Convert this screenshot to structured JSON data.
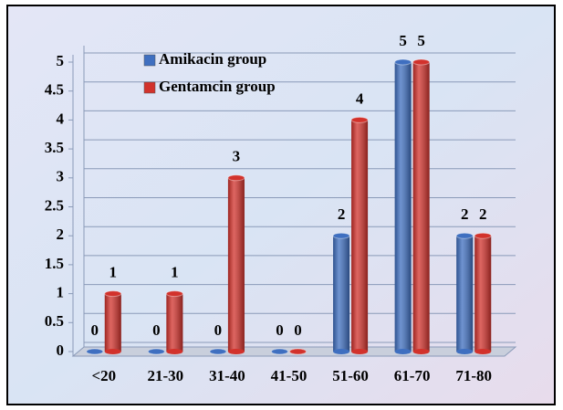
{
  "chart_data": {
    "type": "bar",
    "categories": [
      "<20",
      "21-30",
      "31-40",
      "41-50",
      "51-60",
      "61-70",
      "71-80"
    ],
    "series": [
      {
        "name": "Amikacin group",
        "color": "#3f6fc0",
        "values": [
          0,
          0,
          0,
          0,
          2,
          5,
          2
        ]
      },
      {
        "name": "Gentamcin group",
        "color": "#d2322c",
        "values": [
          1,
          1,
          3,
          0,
          4,
          5,
          2
        ]
      }
    ],
    "ylim": [
      0,
      5
    ],
    "yticks": [
      0,
      0.5,
      1,
      1.5,
      2,
      2.5,
      3,
      3.5,
      4,
      4.5,
      5
    ],
    "grid": true,
    "legend": "upper left"
  }
}
